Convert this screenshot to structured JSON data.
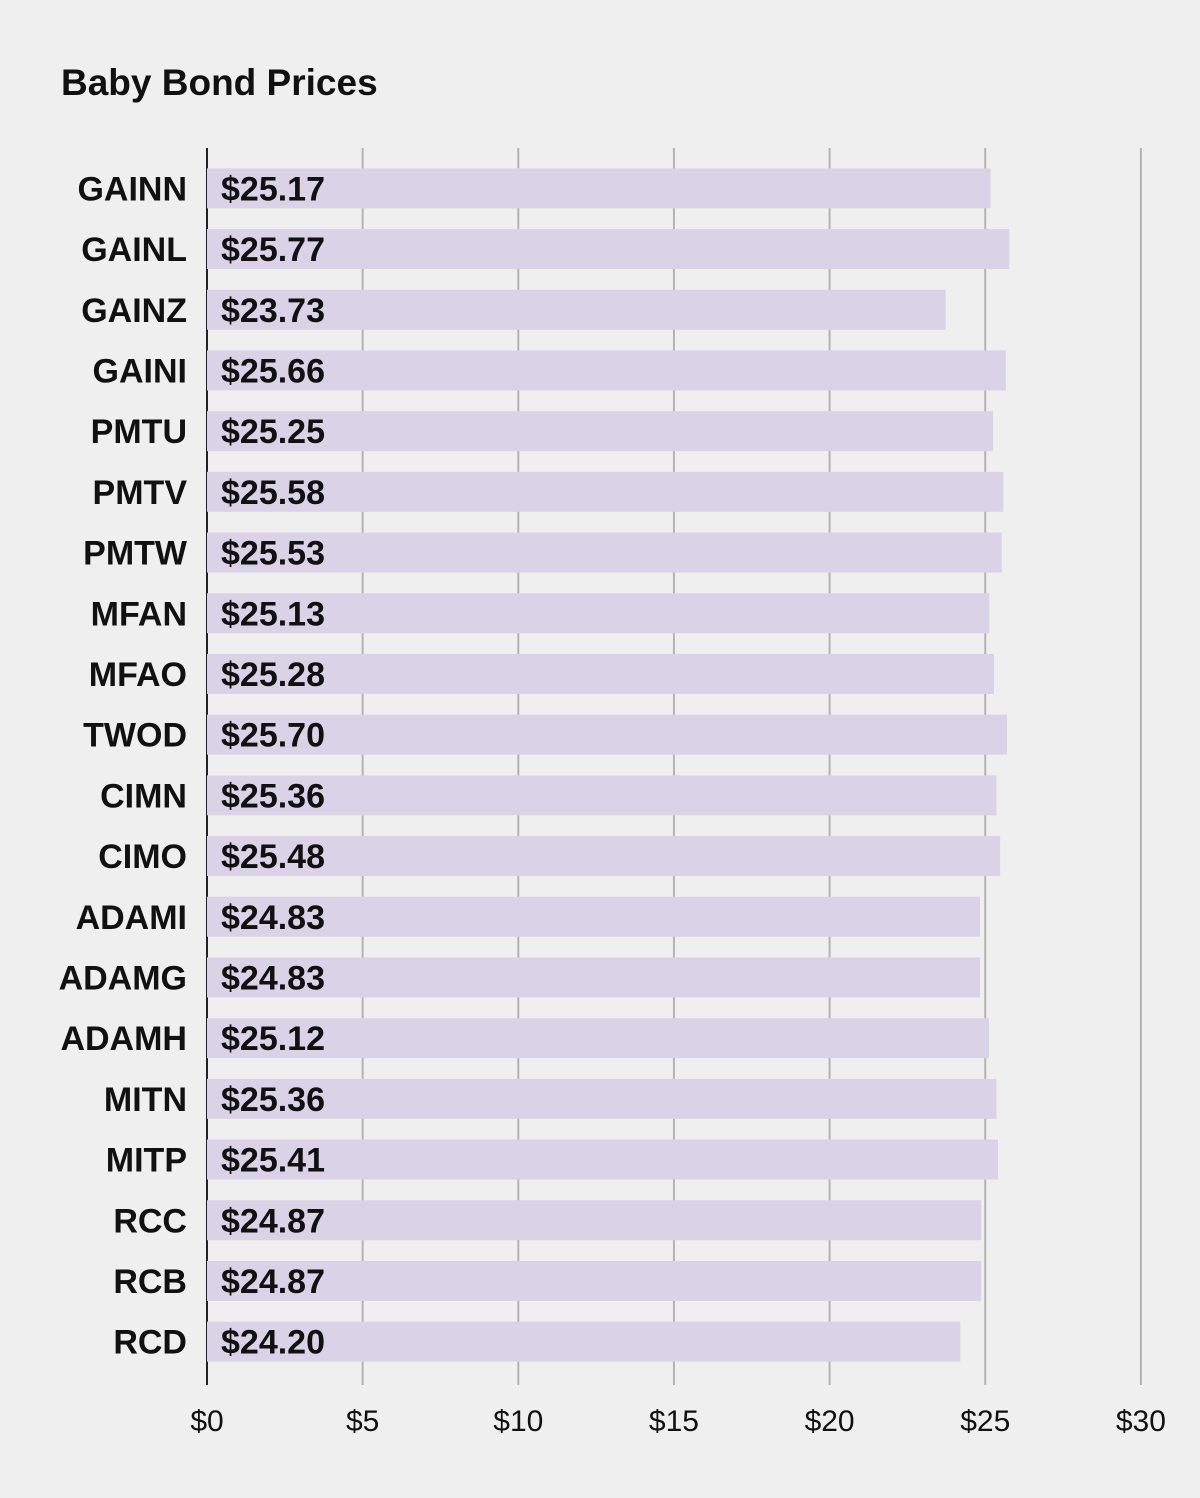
{
  "chart_data": {
    "type": "bar",
    "orientation": "horizontal",
    "title": "Baby Bond Prices",
    "xlabel": "",
    "ylabel": "",
    "categories": [
      "GAINN",
      "GAINL",
      "GAINZ",
      "GAINI",
      "PMTU",
      "PMTV",
      "PMTW",
      "MFAN",
      "MFAO",
      "TWOD",
      "CIMN",
      "CIMO",
      "ADAMI",
      "ADAMG",
      "ADAMH",
      "MITN",
      "MITP",
      "RCC",
      "RCB",
      "RCD"
    ],
    "values": [
      25.17,
      25.77,
      23.73,
      25.66,
      25.25,
      25.58,
      25.53,
      25.13,
      25.28,
      25.7,
      25.36,
      25.48,
      24.83,
      24.83,
      25.12,
      25.36,
      25.41,
      24.87,
      24.87,
      24.2
    ],
    "value_labels": [
      "$25.17",
      "$25.77",
      "$23.73",
      "$25.66",
      "$25.25",
      "$25.58",
      "$25.53",
      "$25.13",
      "$25.28",
      "$25.70",
      "$25.36",
      "$25.48",
      "$24.83",
      "$24.83",
      "$25.12",
      "$25.36",
      "$25.41",
      "$24.87",
      "$24.87",
      "$24.20"
    ],
    "xlim": [
      0,
      30
    ],
    "x_ticks": [
      0,
      5,
      10,
      15,
      20,
      25,
      30
    ],
    "x_tick_labels": [
      "$0",
      "$5",
      "$10",
      "$15",
      "$20",
      "$25",
      "$30"
    ],
    "grid": true,
    "legend": "none",
    "colors": {
      "bar": "#dad3e8",
      "grid": "#b3b3b3",
      "axis": "#222222",
      "text": "#111111",
      "background": "#efefef"
    }
  }
}
